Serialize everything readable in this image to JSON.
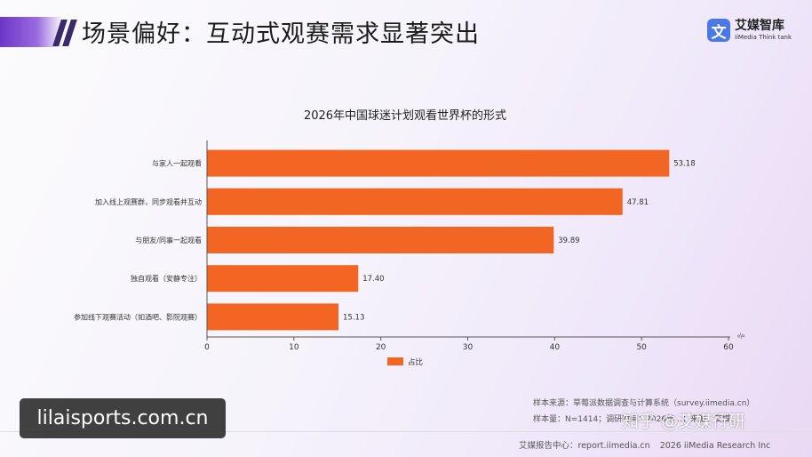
{
  "header": {
    "title": "场景偏好：互动式观赛需求显著突出",
    "logo_mark": "文",
    "logo_name": "艾媒智库",
    "logo_tagline": "iiMedia Think tank"
  },
  "colors": {
    "bar": "#f26522",
    "accent": "#6c35c8",
    "logo": "#4c78e6"
  },
  "chart_data": {
    "type": "bar",
    "orientation": "horizontal",
    "title": "2026年中国球迷计划观看世界杯的形式",
    "categories": [
      "与家人一起观看",
      "加入线上观赛群，同步观看并互动",
      "与朋友/同事一起观看",
      "独自观看（安静专注）",
      "参加线下观赛活动（如酒吧、影院观赛）"
    ],
    "series": [
      {
        "name": "占比",
        "values": [
          53.18,
          47.81,
          39.89,
          17.4,
          15.13
        ]
      }
    ],
    "value_labels": [
      "53.18",
      "47.81",
      "39.89",
      "17.40",
      "15.13"
    ],
    "xlim": [
      0,
      60
    ],
    "xticks": [
      0,
      10,
      20,
      30,
      40,
      50,
      60
    ],
    "xunit": "%",
    "grid": false,
    "legend": "bottom-center"
  },
  "source": {
    "line1": "样本来源：草莓派数据调查与计算系统（survey.iimedia.cn）",
    "line2": "样本量：N=1414；调研时间：2026年…；来源：艾媒…"
  },
  "footer": {
    "center": "艾媒报告中心：report.iimedia.cn",
    "copyright": "2026 iiMedia Research Inc"
  },
  "overlays": {
    "site_watermark": "lilaisports.com.cn",
    "zhihu_watermark": "知乎 @艾媒行研"
  }
}
